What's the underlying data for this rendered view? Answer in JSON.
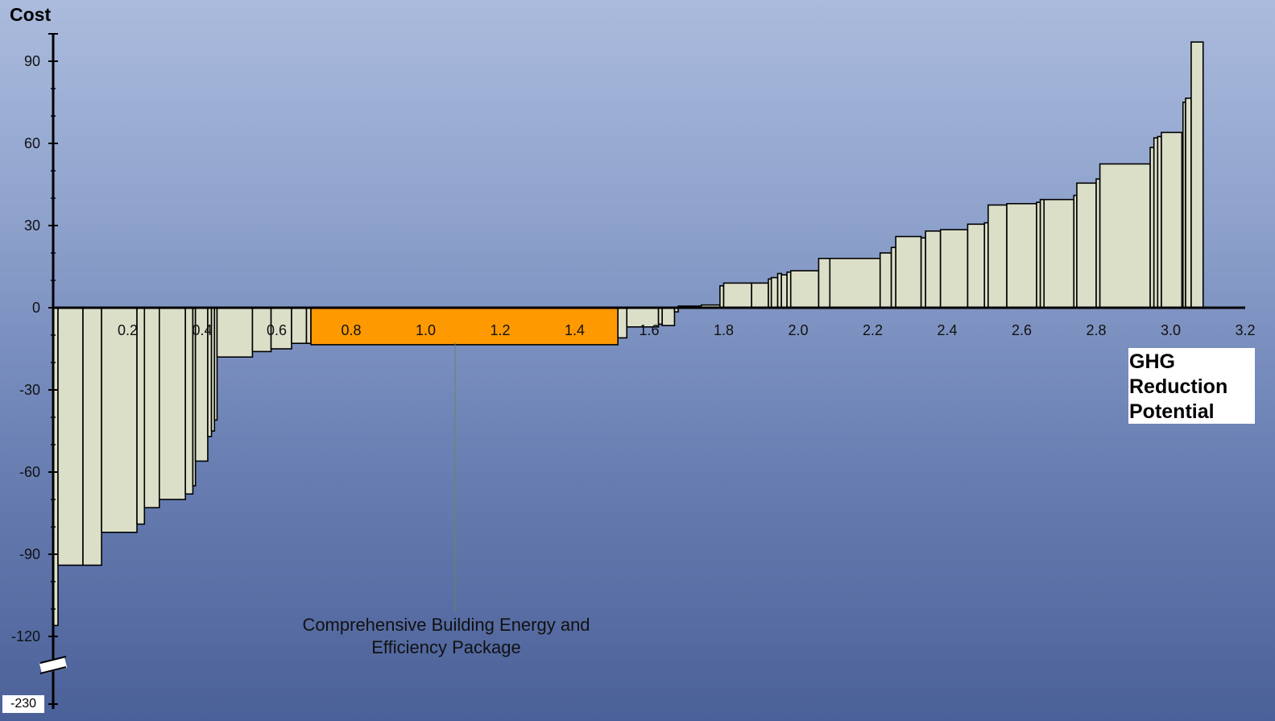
{
  "chart_data": {
    "type": "bar",
    "subtype": "marginal-abatement-cost-curve",
    "ylabel": "Cost",
    "xlabel": "GHG Reduction Potential",
    "xlim": [
      0,
      3.2
    ],
    "ylim": [
      -120,
      100
    ],
    "y_break_value": -230,
    "x_ticks": [
      "0.2",
      "0.4",
      "0.6",
      "0.8",
      "1.0",
      "1.2",
      "1.4",
      "1.6",
      "1.8",
      "2.0",
      "2.2",
      "2.4",
      "2.6",
      "2.8",
      "3.0",
      "3.2"
    ],
    "y_ticks": [
      "90",
      "60",
      "30",
      "0",
      "-30",
      "-60",
      "-90",
      "-120"
    ],
    "y_break_label": "-230",
    "highlight": {
      "label": "Comprehensive Building Energy and Efficiency Package",
      "x0": 0.692,
      "x1": 1.516,
      "value": -13.5,
      "color": "#ff9900"
    },
    "bar_fill": "#dcdfc8",
    "series": [
      {
        "bars": [
          {
            "x0": 0.0,
            "x1": 0.013,
            "value": -116
          },
          {
            "x0": 0.013,
            "x1": 0.08,
            "value": -94
          },
          {
            "x0": 0.08,
            "x1": 0.13,
            "value": -94
          },
          {
            "x0": 0.13,
            "x1": 0.225,
            "value": -82
          },
          {
            "x0": 0.225,
            "x1": 0.245,
            "value": -79
          },
          {
            "x0": 0.245,
            "x1": 0.285,
            "value": -73
          },
          {
            "x0": 0.285,
            "x1": 0.355,
            "value": -70
          },
          {
            "x0": 0.355,
            "x1": 0.375,
            "value": -68
          },
          {
            "x0": 0.375,
            "x1": 0.382,
            "value": -65
          },
          {
            "x0": 0.382,
            "x1": 0.415,
            "value": -56
          },
          {
            "x0": 0.415,
            "x1": 0.425,
            "value": -47
          },
          {
            "x0": 0.425,
            "x1": 0.433,
            "value": -45
          },
          {
            "x0": 0.433,
            "x1": 0.44,
            "value": -41
          },
          {
            "x0": 0.44,
            "x1": 0.535,
            "value": -18
          },
          {
            "x0": 0.535,
            "x1": 0.585,
            "value": -16
          },
          {
            "x0": 0.585,
            "x1": 0.64,
            "value": -15
          },
          {
            "x0": 0.64,
            "x1": 0.68,
            "value": -13
          },
          {
            "x0": 0.68,
            "x1": 0.692,
            "value": -13
          },
          {
            "x0": 1.516,
            "x1": 1.54,
            "value": -11
          },
          {
            "x0": 1.54,
            "x1": 1.625,
            "value": -7
          },
          {
            "x0": 1.625,
            "x1": 1.635,
            "value": -6
          },
          {
            "x0": 1.635,
            "x1": 1.668,
            "value": -6.5
          },
          {
            "x0": 1.668,
            "x1": 1.678,
            "value": -1.5
          },
          {
            "x0": 1.678,
            "x1": 1.74,
            "value": 0.6
          },
          {
            "x0": 1.74,
            "x1": 1.79,
            "value": 1
          },
          {
            "x0": 1.79,
            "x1": 1.8,
            "value": 8
          },
          {
            "x0": 1.8,
            "x1": 1.875,
            "value": 9
          },
          {
            "x0": 1.875,
            "x1": 1.92,
            "value": 9
          },
          {
            "x0": 1.92,
            "x1": 1.928,
            "value": 10.5
          },
          {
            "x0": 1.928,
            "x1": 1.945,
            "value": 11
          },
          {
            "x0": 1.945,
            "x1": 1.955,
            "value": 12.5
          },
          {
            "x0": 1.955,
            "x1": 1.97,
            "value": 12
          },
          {
            "x0": 1.97,
            "x1": 1.98,
            "value": 13
          },
          {
            "x0": 1.98,
            "x1": 2.055,
            "value": 13.5
          },
          {
            "x0": 2.055,
            "x1": 2.085,
            "value": 18
          },
          {
            "x0": 2.085,
            "x1": 2.22,
            "value": 18
          },
          {
            "x0": 2.22,
            "x1": 2.25,
            "value": 20
          },
          {
            "x0": 2.25,
            "x1": 2.262,
            "value": 22
          },
          {
            "x0": 2.262,
            "x1": 2.33,
            "value": 26
          },
          {
            "x0": 2.33,
            "x1": 2.342,
            "value": 25.5
          },
          {
            "x0": 2.342,
            "x1": 2.382,
            "value": 28
          },
          {
            "x0": 2.382,
            "x1": 2.455,
            "value": 28.5
          },
          {
            "x0": 2.455,
            "x1": 2.5,
            "value": 30.5
          },
          {
            "x0": 2.5,
            "x1": 2.51,
            "value": 31
          },
          {
            "x0": 2.51,
            "x1": 2.56,
            "value": 37.5
          },
          {
            "x0": 2.56,
            "x1": 2.64,
            "value": 38
          },
          {
            "x0": 2.64,
            "x1": 2.65,
            "value": 38.5
          },
          {
            "x0": 2.65,
            "x1": 2.66,
            "value": 39.5
          },
          {
            "x0": 2.66,
            "x1": 2.74,
            "value": 39.5
          },
          {
            "x0": 2.74,
            "x1": 2.748,
            "value": 41
          },
          {
            "x0": 2.748,
            "x1": 2.8,
            "value": 45.5
          },
          {
            "x0": 2.8,
            "x1": 2.81,
            "value": 47
          },
          {
            "x0": 2.81,
            "x1": 2.945,
            "value": 52.5
          },
          {
            "x0": 2.945,
            "x1": 2.955,
            "value": 58.5
          },
          {
            "x0": 2.955,
            "x1": 2.965,
            "value": 62
          },
          {
            "x0": 2.965,
            "x1": 2.975,
            "value": 62.5
          },
          {
            "x0": 2.975,
            "x1": 3.03,
            "value": 64
          },
          {
            "x0": 3.033,
            "x1": 3.04,
            "value": 75
          },
          {
            "x0": 3.04,
            "x1": 3.055,
            "value": 76.5
          },
          {
            "x0": 3.055,
            "x1": 3.087,
            "value": 97
          }
        ]
      }
    ]
  }
}
